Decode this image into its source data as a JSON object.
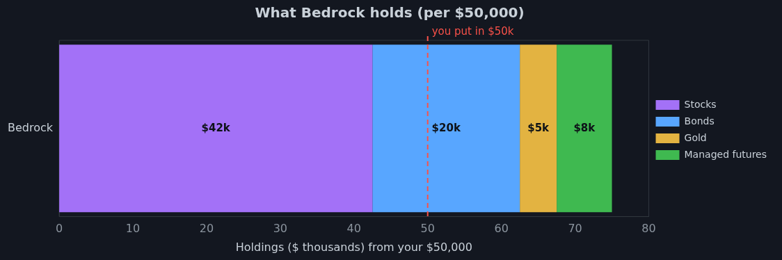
{
  "chart_data": {
    "type": "bar",
    "orientation": "horizontal",
    "stacked": true,
    "title": "What Bedrock holds (per $50,000)",
    "xlabel": "Holdings ($ thousands) from your $50,000",
    "categories": [
      "Bedrock"
    ],
    "series": [
      {
        "name": "Stocks",
        "color": "#a371f7",
        "values": [
          42.5
        ],
        "value_labels": [
          "$42k"
        ]
      },
      {
        "name": "Bonds",
        "color": "#58a6ff",
        "values": [
          20
        ],
        "value_labels": [
          "$20k"
        ]
      },
      {
        "name": "Gold",
        "color": "#e3b341",
        "values": [
          5
        ],
        "value_labels": [
          "$5k"
        ]
      },
      {
        "name": "Managed futures",
        "color": "#3fb950",
        "values": [
          7.5
        ],
        "value_labels": [
          "$8k"
        ]
      }
    ],
    "xlim": [
      0,
      80
    ],
    "xticks": [
      0,
      10,
      20,
      30,
      40,
      50,
      60,
      70,
      80
    ],
    "ref_lines": [
      {
        "axis": "x",
        "value": 50,
        "label": "you put in $50k",
        "color": "#f85149",
        "line_style": "dashed"
      }
    ],
    "legend": "right",
    "grid": false
  }
}
